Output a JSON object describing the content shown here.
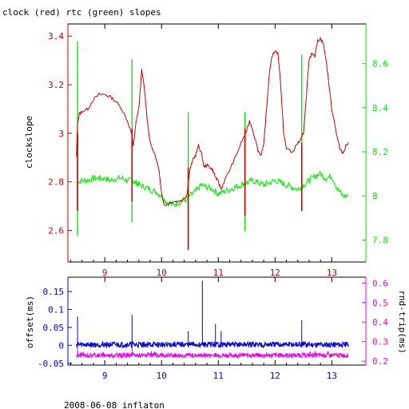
{
  "colors": {
    "clock": "#cc0000",
    "rtc": "#00ee00",
    "offset": "#0000dd",
    "rndtrip": "#ee00ee",
    "frame": "#000000",
    "bg": "#ffffff"
  },
  "chart_data": [
    {
      "type": "line",
      "title": "clock (red) rtc (green) slopes",
      "ylabel": "clockslope",
      "xlim": [
        8.35,
        13.6
      ],
      "x_ticks": [
        "9",
        "10",
        "11",
        "12",
        "13"
      ],
      "ylim": [
        2.47,
        3.45
      ],
      "y_ticks": [
        "2.6",
        "2.8",
        "3",
        "3.2",
        "3.4"
      ],
      "y2lim": [
        7.7,
        8.78
      ],
      "y2_ticks": [
        "7.8",
        "8",
        "8.2",
        "8.4",
        "8.6"
      ],
      "series": [
        {
          "name": "clock",
          "axis": "left",
          "points": [
            [
              8.5,
              2.9
            ],
            [
              8.52,
              3.04
            ],
            [
              8.55,
              3.08
            ],
            [
              8.6,
              3.09
            ],
            [
              8.7,
              3.1
            ],
            [
              8.8,
              3.14
            ],
            [
              8.9,
              3.16
            ],
            [
              9.0,
              3.16
            ],
            [
              9.1,
              3.15
            ],
            [
              9.2,
              3.13
            ],
            [
              9.3,
              3.1
            ],
            [
              9.4,
              3.05
            ],
            [
              9.47,
              3.0
            ],
            [
              9.5,
              2.95
            ],
            [
              9.52,
              2.98
            ],
            [
              9.55,
              3.05
            ],
            [
              9.6,
              3.1
            ],
            [
              9.65,
              3.26
            ],
            [
              9.7,
              3.18
            ],
            [
              9.75,
              3.05
            ],
            [
              9.8,
              2.96
            ],
            [
              9.9,
              2.9
            ],
            [
              9.95,
              2.85
            ],
            [
              10.0,
              2.76
            ],
            [
              10.05,
              2.7
            ],
            [
              10.1,
              2.71
            ],
            [
              10.2,
              2.72
            ],
            [
              10.3,
              2.72
            ],
            [
              10.4,
              2.73
            ],
            [
              10.45,
              2.75
            ],
            [
              10.47,
              2.8
            ],
            [
              10.5,
              2.85
            ],
            [
              10.55,
              2.89
            ],
            [
              10.6,
              2.91
            ],
            [
              10.65,
              2.95
            ],
            [
              10.7,
              2.92
            ],
            [
              10.75,
              2.86
            ],
            [
              10.8,
              2.87
            ],
            [
              10.85,
              2.86
            ],
            [
              10.9,
              2.85
            ],
            [
              10.95,
              2.82
            ],
            [
              11.0,
              2.8
            ],
            [
              11.05,
              2.77
            ],
            [
              11.1,
              2.8
            ],
            [
              11.2,
              2.85
            ],
            [
              11.3,
              2.9
            ],
            [
              11.4,
              2.96
            ],
            [
              11.5,
              3.01
            ],
            [
              11.55,
              3.05
            ],
            [
              11.6,
              3.02
            ],
            [
              11.7,
              2.93
            ],
            [
              11.75,
              2.91
            ],
            [
              11.8,
              2.95
            ],
            [
              11.85,
              3.1
            ],
            [
              11.9,
              3.25
            ],
            [
              11.95,
              3.32
            ],
            [
              12.0,
              3.34
            ],
            [
              12.05,
              3.33
            ],
            [
              12.1,
              3.2
            ],
            [
              12.15,
              3.0
            ],
            [
              12.2,
              2.94
            ],
            [
              12.3,
              2.92
            ],
            [
              12.4,
              2.96
            ],
            [
              12.45,
              2.97
            ],
            [
              12.5,
              3.0
            ],
            [
              12.55,
              3.15
            ],
            [
              12.6,
              3.3
            ],
            [
              12.65,
              3.33
            ],
            [
              12.7,
              3.32
            ],
            [
              12.75,
              3.38
            ],
            [
              12.8,
              3.39
            ],
            [
              12.85,
              3.37
            ],
            [
              12.9,
              3.3
            ],
            [
              12.95,
              3.2
            ],
            [
              13.0,
              3.1
            ],
            [
              13.1,
              2.98
            ],
            [
              13.15,
              2.93
            ],
            [
              13.2,
              2.92
            ],
            [
              13.25,
              2.95
            ],
            [
              13.3,
              2.96
            ]
          ],
          "spikes": [
            {
              "x": 8.52,
              "low": 2.68,
              "high": 3.0
            },
            {
              "x": 9.48,
              "low": 2.72,
              "high": 3.02
            },
            {
              "x": 10.47,
              "low": 2.52,
              "high": 2.86
            },
            {
              "x": 11.47,
              "low": 2.66,
              "high": 3.02
            },
            {
              "x": 12.47,
              "low": 2.68,
              "high": 2.96
            }
          ]
        },
        {
          "name": "rtc",
          "axis": "right",
          "points": [
            [
              8.5,
              8.06
            ],
            [
              8.6,
              8.07
            ],
            [
              8.7,
              8.07
            ],
            [
              8.8,
              8.08
            ],
            [
              8.9,
              8.08
            ],
            [
              9.0,
              8.08
            ],
            [
              9.1,
              8.07
            ],
            [
              9.2,
              8.08
            ],
            [
              9.3,
              8.08
            ],
            [
              9.4,
              8.07
            ],
            [
              9.5,
              8.07
            ],
            [
              9.55,
              8.06
            ],
            [
              9.6,
              8.05
            ],
            [
              9.7,
              8.04
            ],
            [
              9.8,
              8.03
            ],
            [
              9.9,
              8.02
            ],
            [
              10.0,
              8.0
            ],
            [
              10.1,
              7.97
            ],
            [
              10.2,
              7.96
            ],
            [
              10.3,
              7.97
            ],
            [
              10.4,
              7.98
            ],
            [
              10.5,
              8.0
            ],
            [
              10.6,
              8.02
            ],
            [
              10.7,
              8.05
            ],
            [
              10.8,
              8.04
            ],
            [
              10.9,
              8.03
            ],
            [
              11.0,
              8.01
            ],
            [
              11.1,
              8.02
            ],
            [
              11.2,
              8.03
            ],
            [
              11.3,
              8.04
            ],
            [
              11.4,
              8.05
            ],
            [
              11.5,
              8.06
            ],
            [
              11.6,
              8.07
            ],
            [
              11.7,
              8.06
            ],
            [
              11.8,
              8.05
            ],
            [
              11.9,
              8.06
            ],
            [
              12.0,
              8.07
            ],
            [
              12.1,
              8.06
            ],
            [
              12.2,
              8.05
            ],
            [
              12.3,
              8.04
            ],
            [
              12.4,
              8.03
            ],
            [
              12.5,
              8.05
            ],
            [
              12.6,
              8.07
            ],
            [
              12.7,
              8.09
            ],
            [
              12.8,
              8.1
            ],
            [
              12.9,
              8.08
            ],
            [
              13.0,
              8.09
            ],
            [
              13.1,
              8.03
            ],
            [
              13.2,
              8.0
            ],
            [
              13.3,
              8.0
            ]
          ],
          "spikes": [
            {
              "x": 8.52,
              "low": 7.82,
              "high": 8.7
            },
            {
              "x": 9.48,
              "low": 7.88,
              "high": 8.62
            },
            {
              "x": 10.47,
              "low": 7.92,
              "high": 8.38
            },
            {
              "x": 11.47,
              "low": 7.84,
              "high": 8.38
            },
            {
              "x": 12.47,
              "low": 7.93,
              "high": 8.64
            }
          ]
        }
      ]
    },
    {
      "type": "line",
      "ylabel": "offset(ms)",
      "y2label": "rnd-trip(ms)",
      "xlim": [
        8.35,
        13.6
      ],
      "x_ticks": [
        "9",
        "10",
        "11",
        "12",
        "13"
      ],
      "ylim": [
        -0.055,
        0.19
      ],
      "y_ticks": [
        "-0.05",
        "0",
        "0.05",
        "0.1",
        "0.15"
      ],
      "y2lim": [
        0.18,
        0.63
      ],
      "y2_ticks": [
        "0.2",
        "0.3",
        "0.4",
        "0.5",
        "0.6"
      ],
      "series": [
        {
          "name": "offset",
          "axis": "left",
          "baseline": 0.002,
          "noise": 0.008,
          "spikes": [
            {
              "x": 8.52,
              "value": 0.08
            },
            {
              "x": 9.48,
              "value": 0.085
            },
            {
              "x": 10.47,
              "value": 0.04
            },
            {
              "x": 10.72,
              "value": 0.18
            },
            {
              "x": 10.95,
              "value": 0.06
            },
            {
              "x": 11.05,
              "value": 0.04
            },
            {
              "x": 12.47,
              "value": 0.07
            }
          ]
        },
        {
          "name": "rnd-trip",
          "axis": "right",
          "baseline": 0.23,
          "noise": 0.012,
          "spikes": [
            {
              "x": 8.52,
              "value": 0.3
            },
            {
              "x": 9.48,
              "value": 0.29
            }
          ]
        }
      ]
    }
  ],
  "footer": "2008-06-08 inflaton"
}
